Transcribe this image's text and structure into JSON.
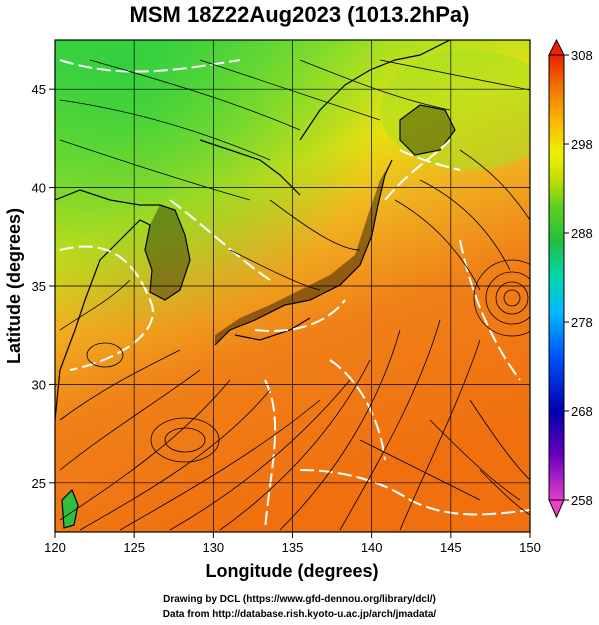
{
  "title": "MSM 18Z22Aug2023 (1013.2hPa)",
  "xlabel": "Longitude (degrees)",
  "ylabel": "Latitude  (degrees)",
  "x_ticks": [
    "120",
    "125",
    "130",
    "135",
    "140",
    "145",
    "150"
  ],
  "y_ticks": [
    "25",
    "30",
    "35",
    "40",
    "45"
  ],
  "colorbar": {
    "ticks": [
      "308",
      "298",
      "288",
      "278",
      "268",
      "258"
    ],
    "min": 258,
    "max": 308,
    "colors": [
      "#e040c8",
      "#6a00c0",
      "#0000b0",
      "#0050ff",
      "#00b8ff",
      "#00e0c8",
      "#20c040",
      "#40d020",
      "#b0e000",
      "#f0f000",
      "#f8b000",
      "#f07000",
      "#f02000"
    ]
  },
  "map": {
    "lon_range": [
      120,
      150
    ],
    "lat_range": [
      22.5,
      47.5
    ],
    "grid_lon": [
      125,
      130,
      135,
      140,
      145
    ],
    "grid_lat": [
      25,
      30,
      35,
      40,
      45
    ],
    "land_color": "#000000",
    "field_colors": {
      "warm": "#f07a10",
      "mid": "#f0c020",
      "cool": "#90e020",
      "cold": "#30d040"
    }
  },
  "footer": {
    "line1": "Drawing by DCL (https://www.gfd-dennou.org/library/dcl/)",
    "line2": "Data from http://database.rish.kyoto-u.ac.jp/arch/jmadata/"
  }
}
